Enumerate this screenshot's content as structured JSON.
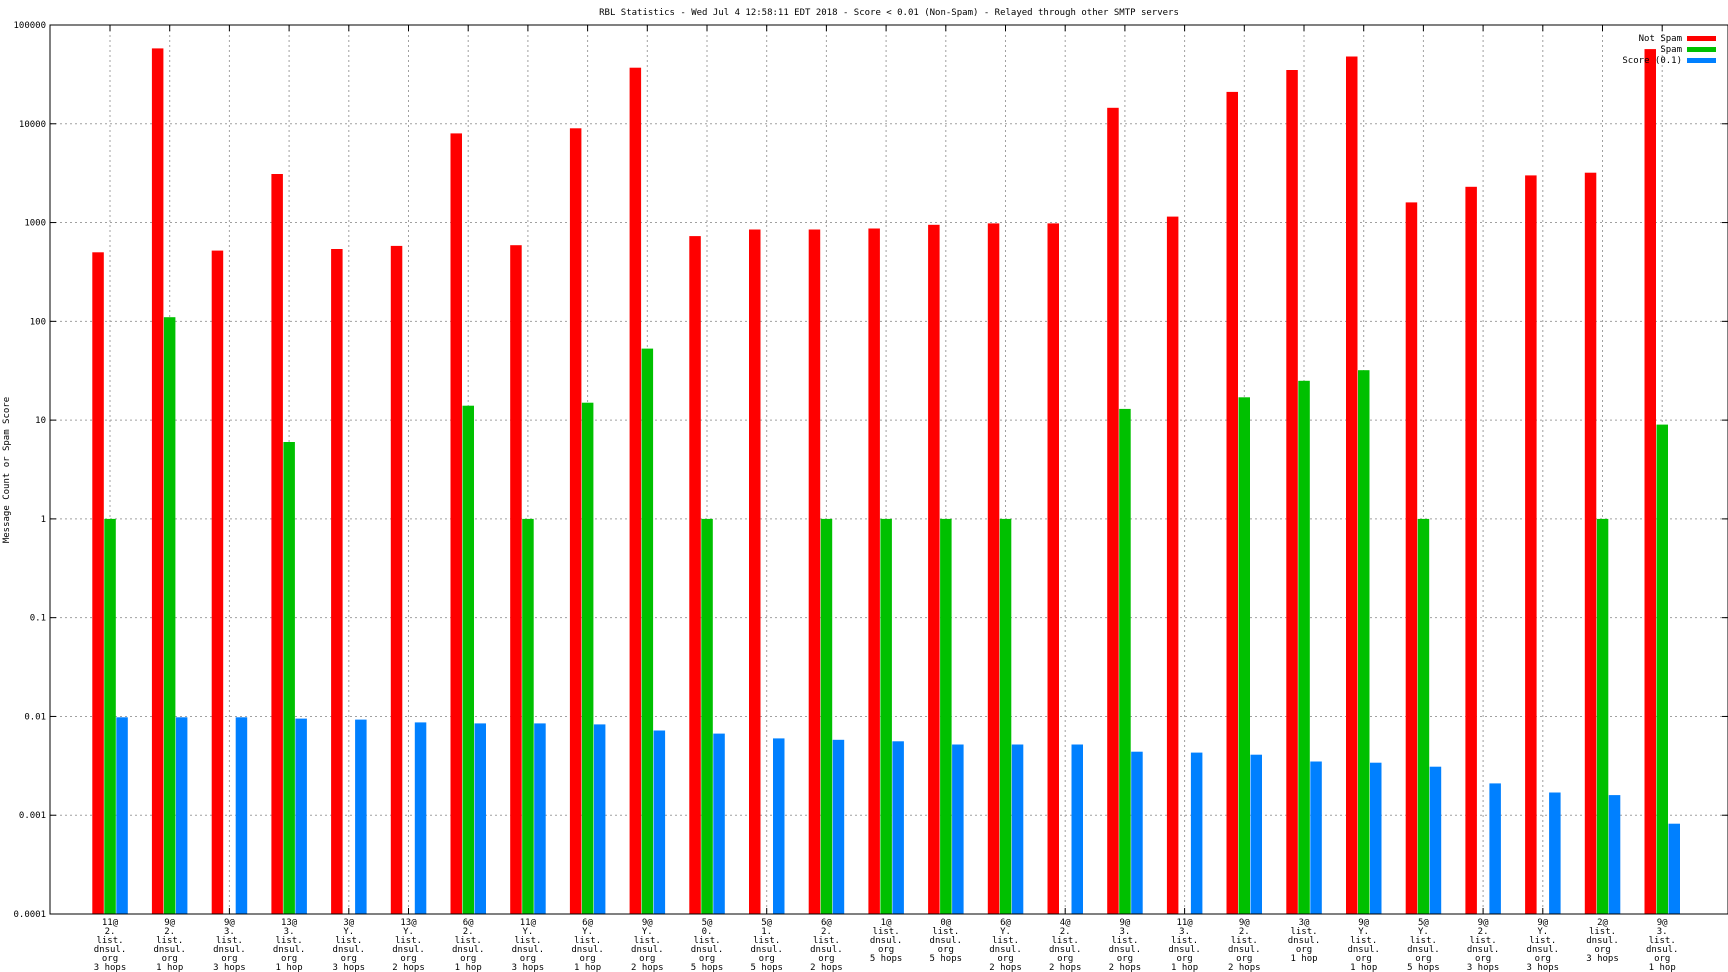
{
  "chart_data": {
    "type": "bar",
    "title": "RBL Statistics - Wed Jul  4 12:58:11 EDT 2018 - Score < 0.01 (Non-Spam) - Relayed through other SMTP servers",
    "ylabel": "Message Count or Spam Score",
    "xlabel": "",
    "yscale": "log",
    "ylim": [
      0.0001,
      100000
    ],
    "yticks": [
      "0.0001",
      "0.001",
      "0.01",
      "0.1",
      "1",
      "10",
      "100",
      "1000",
      "10000",
      "100000"
    ],
    "grid": true,
    "legend_position": "top-right",
    "categories": [
      [
        "11@",
        "2.",
        "list.",
        "dnsul.",
        "org",
        "3 hops"
      ],
      [
        "9@",
        "2.",
        "list.",
        "dnsul.",
        "org",
        "1 hop"
      ],
      [
        "9@",
        "3.",
        "list.",
        "dnsul.",
        "org",
        "3 hops"
      ],
      [
        "13@",
        "3.",
        "list.",
        "dnsul.",
        "org",
        "1 hop"
      ],
      [
        "3@",
        "Y.",
        "list.",
        "dnsul.",
        "org",
        "3 hops"
      ],
      [
        "13@",
        "Y.",
        "list.",
        "dnsul.",
        "org",
        "2 hops"
      ],
      [
        "6@",
        "2.",
        "list.",
        "dnsul.",
        "org",
        "1 hop"
      ],
      [
        "11@",
        "Y.",
        "list.",
        "dnsul.",
        "org",
        "3 hops"
      ],
      [
        "6@",
        "Y.",
        "list.",
        "dnsul.",
        "org",
        "1 hop"
      ],
      [
        "9@",
        "Y.",
        "list.",
        "dnsul.",
        "org",
        "2 hops"
      ],
      [
        "5@",
        "0.",
        "list.",
        "dnsul.",
        "org",
        "5 hops"
      ],
      [
        "5@",
        "1.",
        "list.",
        "dnsul.",
        "org",
        "5 hops"
      ],
      [
        "6@",
        "2.",
        "list.",
        "dnsul.",
        "org",
        "2 hops"
      ],
      [
        "1@",
        "list.",
        "dnsul.",
        "org",
        "5 hops"
      ],
      [
        "0@",
        "list.",
        "dnsul.",
        "org",
        "5 hops"
      ],
      [
        "6@",
        "Y.",
        "list.",
        "dnsul.",
        "org",
        "2 hops"
      ],
      [
        "4@",
        "2.",
        "list.",
        "dnsul.",
        "org",
        "2 hops"
      ],
      [
        "9@",
        "3.",
        "list.",
        "dnsul.",
        "org",
        "2 hops"
      ],
      [
        "11@",
        "3.",
        "list.",
        "dnsul.",
        "org",
        "1 hop"
      ],
      [
        "9@",
        "2.",
        "list.",
        "dnsul.",
        "org",
        "2 hops"
      ],
      [
        "3@",
        "list.",
        "dnsul.",
        "org",
        "1 hop"
      ],
      [
        "9@",
        "Y.",
        "list.",
        "dnsul.",
        "org",
        "1 hop"
      ],
      [
        "5@",
        "Y.",
        "list.",
        "dnsul.",
        "org",
        "5 hops"
      ],
      [
        "9@",
        "2.",
        "list.",
        "dnsul.",
        "org",
        "3 hops"
      ],
      [
        "9@",
        "Y.",
        "list.",
        "dnsul.",
        "org",
        "3 hops"
      ],
      [
        "2@",
        "list.",
        "dnsul.",
        "org",
        "3 hops"
      ],
      [
        "9@",
        "3.",
        "list.",
        "dnsul.",
        "org",
        "1 hop"
      ]
    ],
    "series": [
      {
        "name": "Not Spam",
        "color": "#ff0000",
        "values": [
          500,
          58000,
          520,
          3100,
          540,
          580,
          8000,
          590,
          9000,
          37000,
          730,
          850,
          850,
          870,
          950,
          980,
          980,
          14500,
          1150,
          21000,
          35000,
          48000,
          1600,
          2300,
          3000,
          3200,
          57000
        ]
      },
      {
        "name": "Spam",
        "color": "#00c000",
        "values": [
          1,
          110,
          null,
          6,
          null,
          null,
          14,
          1,
          15,
          53,
          1,
          null,
          1,
          1,
          1,
          1,
          null,
          13,
          null,
          17,
          25,
          32,
          1,
          null,
          null,
          1,
          9
        ]
      },
      {
        "name": "Score (0.1)",
        "color": "#0080ff",
        "values": [
          0.0098,
          0.0098,
          0.0098,
          0.0095,
          0.0093,
          0.0087,
          0.0085,
          0.0085,
          0.0083,
          0.0072,
          0.0067,
          0.006,
          0.0058,
          0.0056,
          0.0052,
          0.0052,
          0.0052,
          0.0044,
          0.0043,
          0.0041,
          0.0035,
          0.0034,
          0.0031,
          0.0021,
          0.0017,
          0.0016,
          0.00082
        ]
      }
    ]
  }
}
